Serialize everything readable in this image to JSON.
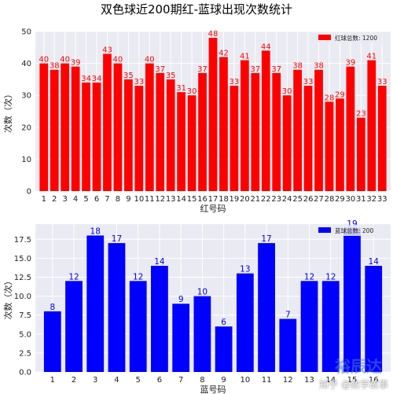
{
  "figure_title": "双色球近200期红-蓝球出现次数统计",
  "watermark": {
    "logo_text": "裕辰达",
    "text": "知乎 @数学故事"
  },
  "chart_data": [
    {
      "type": "bar",
      "color": "#ff0000",
      "categories": [
        "1",
        "2",
        "3",
        "4",
        "5",
        "6",
        "7",
        "8",
        "9",
        "10",
        "11",
        "12",
        "13",
        "14",
        "15",
        "16",
        "17",
        "18",
        "19",
        "20",
        "21",
        "22",
        "23",
        "24",
        "25",
        "26",
        "27",
        "28",
        "29",
        "30",
        "31",
        "32",
        "33"
      ],
      "values": [
        40,
        38,
        40,
        39,
        34,
        34,
        43,
        40,
        35,
        33,
        40,
        37,
        35,
        31,
        30,
        37,
        48,
        42,
        33,
        41,
        37,
        44,
        37,
        30,
        38,
        33,
        38,
        28,
        29,
        39,
        23,
        41,
        33
      ],
      "value_labels": [
        "40",
        "38",
        "40",
        "39",
        "34",
        "34",
        "43",
        "40",
        "35",
        "33",
        "40",
        "37",
        "35",
        "31",
        "30",
        "37",
        "48",
        "42",
        "33",
        "41",
        "37",
        "44",
        "37",
        "30",
        "38",
        "33",
        "38",
        "28",
        "29",
        "39",
        "23",
        "41",
        "33"
      ],
      "xlabel": "红号码",
      "ylabel": "次数（次）",
      "ylim": [
        0,
        50
      ],
      "yticks": [
        0,
        10,
        20,
        30,
        40,
        50
      ],
      "ytick_labels": [
        "0",
        "10",
        "20",
        "30",
        "40",
        "50"
      ],
      "legend": "红球总数: 1200",
      "legend_position": "top-right",
      "grid": true
    },
    {
      "type": "bar",
      "color": "#0000ff",
      "categories": [
        "1",
        "2",
        "3",
        "4",
        "5",
        "6",
        "7",
        "8",
        "9",
        "10",
        "11",
        "12",
        "13",
        "14",
        "15",
        "16"
      ],
      "values": [
        8,
        12,
        18,
        17,
        12,
        14,
        9,
        10,
        6,
        13,
        17,
        7,
        12,
        12,
        19,
        14
      ],
      "value_labels": [
        "8",
        "12",
        "18",
        "17",
        "12",
        "14",
        "9",
        "10",
        "6",
        "13",
        "17",
        "7",
        "12",
        "12",
        "19",
        "14"
      ],
      "xlabel": "蓝号码",
      "ylabel": "次数（次）",
      "ylim": [
        0,
        19.5
      ],
      "yticks": [
        0,
        2.5,
        5,
        7.5,
        10,
        12.5,
        15,
        17.5
      ],
      "ytick_labels": [
        "0.0",
        "2.5",
        "5.0",
        "7.5",
        "10.0",
        "12.5",
        "15.0",
        "17.5"
      ],
      "legend": "蓝球总数: 200",
      "legend_position": "top-right",
      "grid": true
    }
  ]
}
